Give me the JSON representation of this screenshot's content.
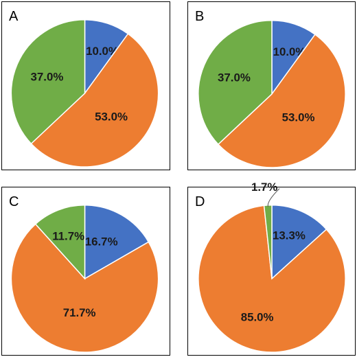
{
  "colors": {
    "blue": "#4472C4",
    "orange": "#ED7D31",
    "green": "#70AD47"
  },
  "chart_data": [
    {
      "type": "pie",
      "panel_label": "A",
      "slices": [
        {
          "label": "10.0%",
          "value": 10.0,
          "color": "#4472C4"
        },
        {
          "label": "53.0%",
          "value": 53.0,
          "color": "#ED7D31"
        },
        {
          "label": "37.0%",
          "value": 37.0,
          "color": "#70AD47"
        }
      ]
    },
    {
      "type": "pie",
      "panel_label": "B",
      "slices": [
        {
          "label": "10.0%",
          "value": 10.0,
          "color": "#4472C4"
        },
        {
          "label": "53.0%",
          "value": 53.0,
          "color": "#ED7D31"
        },
        {
          "label": "37.0%",
          "value": 37.0,
          "color": "#70AD47"
        }
      ]
    },
    {
      "type": "pie",
      "panel_label": "C",
      "slices": [
        {
          "label": "16.7%",
          "value": 16.7,
          "color": "#4472C4"
        },
        {
          "label": "71.7%",
          "value": 71.7,
          "color": "#ED7D31"
        },
        {
          "label": "11.7%",
          "value": 11.7,
          "color": "#70AD47"
        }
      ]
    },
    {
      "type": "pie",
      "panel_label": "D",
      "slices": [
        {
          "label": "13.3%",
          "value": 13.3,
          "color": "#4472C4"
        },
        {
          "label": "85.0%",
          "value": 85.0,
          "color": "#ED7D31"
        },
        {
          "label": "1.7%",
          "value": 1.7,
          "color": "#70AD47"
        }
      ]
    }
  ]
}
